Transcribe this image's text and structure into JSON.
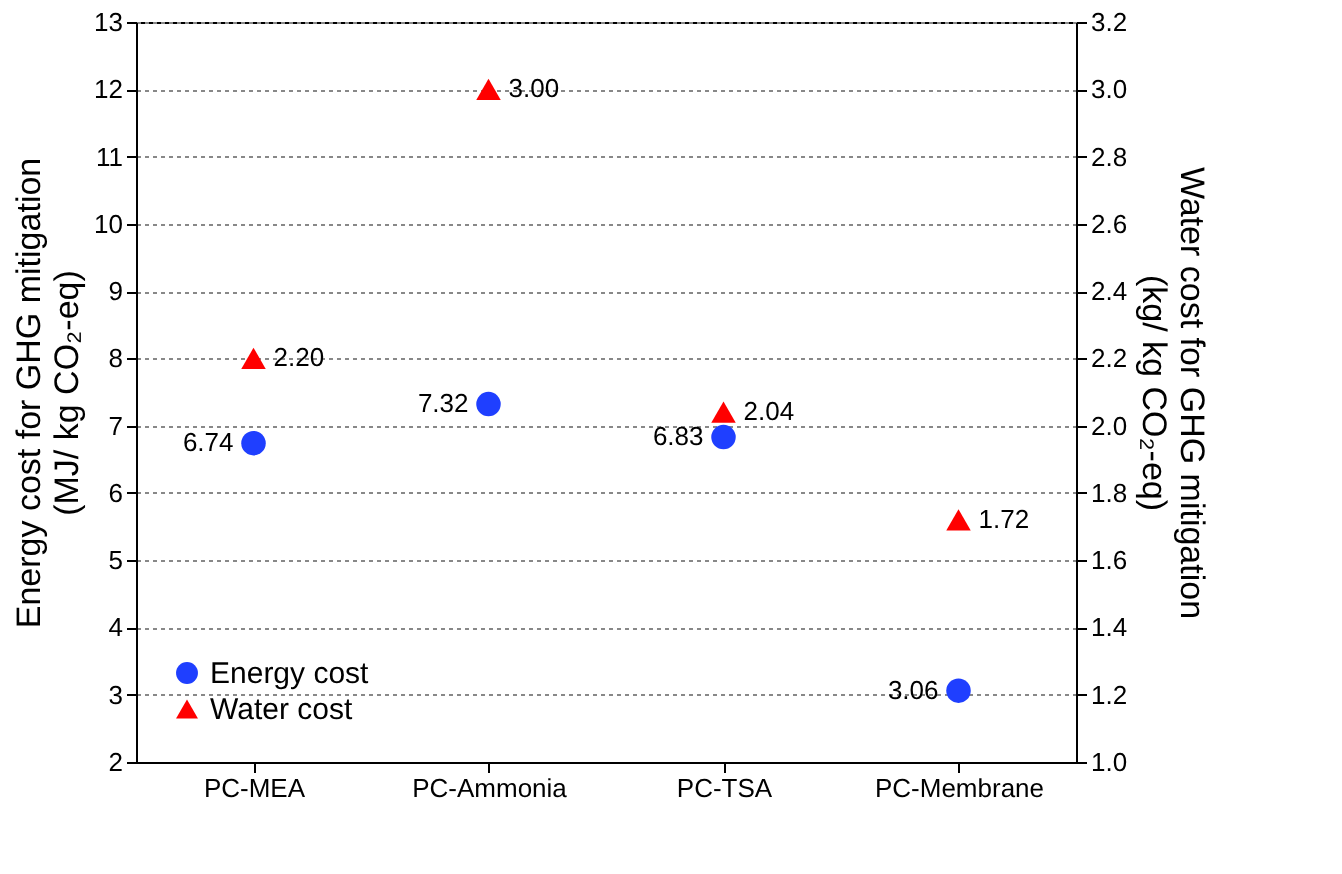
{
  "chart_data": {
    "type": "scatter",
    "categories": [
      "PC-MEA",
      "PC-Ammonia",
      "PC-TSA",
      "PC-Membrane"
    ],
    "ylabel": "Energy cost for GHG mitigation\n(MJ/ kg CO₂-eq)",
    "y2label": "Water cost for GHG mitigation\n(kg/ kg CO₂-eq)",
    "ylim": [
      2,
      13
    ],
    "yticks": [
      2,
      3,
      4,
      5,
      6,
      7,
      8,
      9,
      10,
      11,
      12,
      13
    ],
    "y2lim": [
      1.0,
      3.2
    ],
    "y2ticks": [
      {
        "value": 1.0,
        "label": "1.0"
      },
      {
        "value": 1.2,
        "label": "1.2"
      },
      {
        "value": 1.4,
        "label": "1.4"
      },
      {
        "value": 1.6,
        "label": "1.6"
      },
      {
        "value": 1.8,
        "label": "1.8"
      },
      {
        "value": 2.0,
        "label": "2.0"
      },
      {
        "value": 2.2,
        "label": "2.2"
      },
      {
        "value": 2.4,
        "label": "2.4"
      },
      {
        "value": 2.6,
        "label": "2.6"
      },
      {
        "value": 2.8,
        "label": "2.8"
      },
      {
        "value": 3.0,
        "label": "3.0"
      },
      {
        "value": 3.2,
        "label": "3.2"
      }
    ],
    "grid": "y",
    "legend": "bottom left",
    "series": [
      {
        "name": "Energy cost",
        "color": "#1f3fff",
        "marker": "circle",
        "values": [
          6.74,
          7.32,
          6.83,
          3.06
        ],
        "value_labels": [
          "6.74",
          "7.32",
          "6.83",
          "3.06"
        ]
      },
      {
        "name": "Water cost",
        "color": "#ff0000",
        "marker": "triangle",
        "axis": "y2",
        "values": [
          2.2,
          3.0,
          2.04,
          1.72
        ],
        "value_labels": [
          "2.20",
          "3.00",
          "2.04",
          "1.72"
        ]
      }
    ]
  }
}
